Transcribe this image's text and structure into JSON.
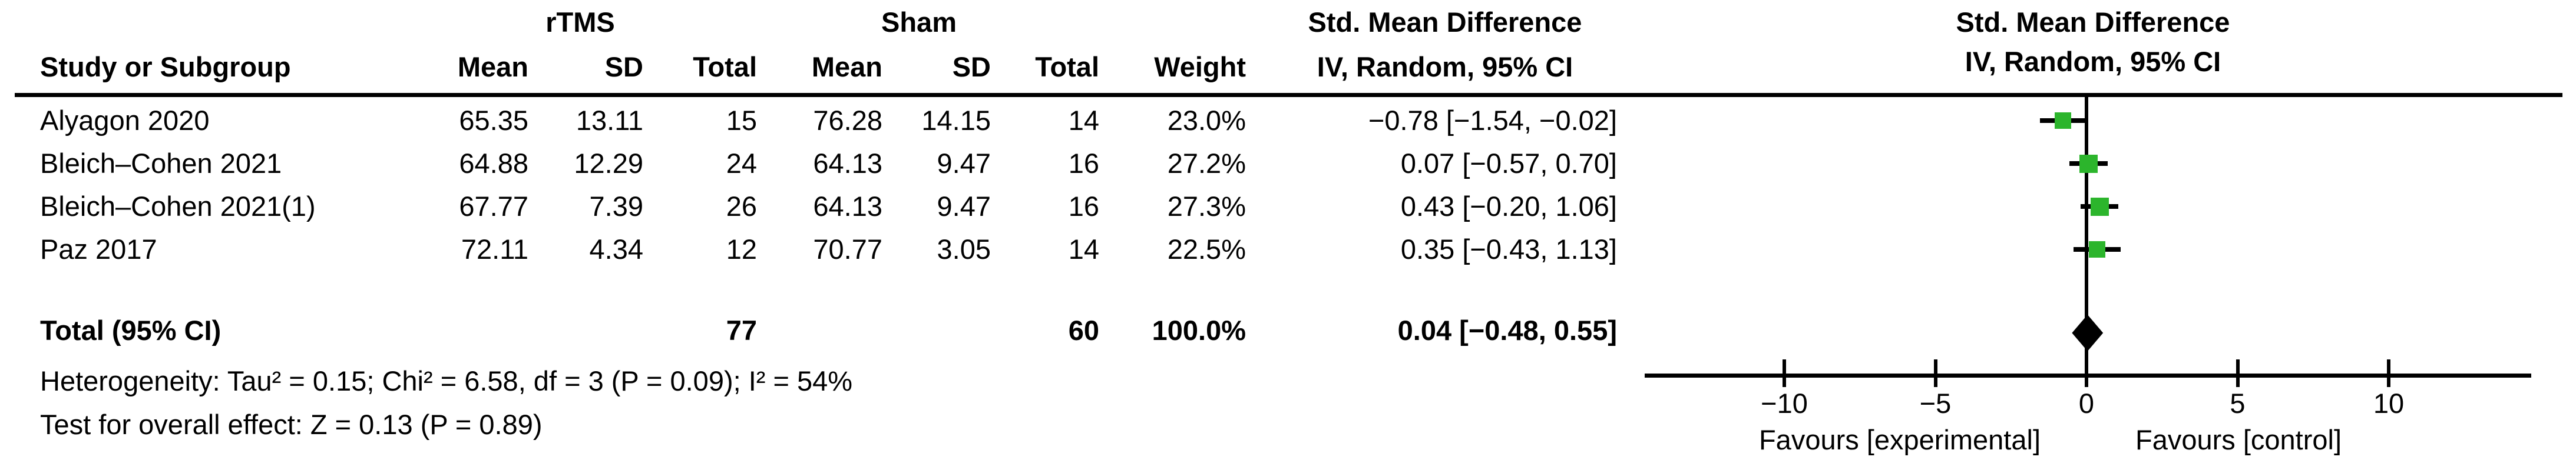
{
  "figure_title": "Forest plot: rTMS vs Sham, Std. Mean Difference (IV, Random, 95% CI)",
  "colors": {
    "square_green": "#2cb52c",
    "line_black": "#000000",
    "background": "#ffffff"
  },
  "table": {
    "group_headers": {
      "rtms": "rTMS",
      "sham": "Sham",
      "smd_table": "Std. Mean Difference",
      "smd_plot_line1": "Std. Mean Difference",
      "smd_plot_line2": "IV, Random, 95% CI"
    },
    "column_headers": {
      "study": "Study or Subgroup",
      "mean1": "Mean",
      "sd1": "SD",
      "total1": "Total",
      "mean2": "Mean",
      "sd2": "SD",
      "total2": "Total",
      "weight": "Weight",
      "ci": "IV, Random, 95% CI"
    },
    "rows": [
      {
        "study": "Alyagon 2020",
        "mean1": "65.35",
        "sd1": "13.11",
        "total1": "15",
        "mean2": "76.28",
        "sd2": "14.15",
        "total2": "14",
        "weight": "23.0%",
        "ci": "−0.78 [−1.54, −0.02]"
      },
      {
        "study": "Bleich–Cohen 2021",
        "mean1": "64.88",
        "sd1": "12.29",
        "total1": "24",
        "mean2": "64.13",
        "sd2": "9.47",
        "total2": "16",
        "weight": "27.2%",
        "ci": "0.07 [−0.57, 0.70]"
      },
      {
        "study": "Bleich–Cohen 2021(1)",
        "mean1": "67.77",
        "sd1": "7.39",
        "total1": "26",
        "mean2": "64.13",
        "sd2": "9.47",
        "total2": "16",
        "weight": "27.3%",
        "ci": "0.43 [−0.20, 1.06]"
      },
      {
        "study": "Paz 2017",
        "mean1": "72.11",
        "sd1": "4.34",
        "total1": "12",
        "mean2": "70.77",
        "sd2": "3.05",
        "total2": "14",
        "weight": "22.5%",
        "ci": "0.35 [−0.43, 1.13]"
      }
    ],
    "total_row": {
      "label": "Total (95% CI)",
      "total1": "77",
      "total2": "60",
      "weight": "100.0%",
      "ci": "0.04 [−0.48, 0.55]"
    }
  },
  "footer": {
    "heterogeneity": "Heterogeneity: Tau² = 0.15; Chi² = 6.58, df = 3 (P = 0.09); I² = 54%",
    "overall_effect": "Test for overall effect: Z = 0.13 (P = 0.89)"
  },
  "chart_data": {
    "type": "scatter",
    "subtype": "forest-plot",
    "effect_measure": "Std. Mean Difference, IV, Random, 95% CI",
    "studies": [
      {
        "name": "Alyagon 2020",
        "smd": -0.78,
        "ci": [
          -1.54,
          -0.02
        ],
        "weight_pct": 23.0
      },
      {
        "name": "Bleich–Cohen 2021",
        "smd": 0.07,
        "ci": [
          -0.57,
          0.7
        ],
        "weight_pct": 27.2
      },
      {
        "name": "Bleich–Cohen 2021(1)",
        "smd": 0.43,
        "ci": [
          -0.2,
          1.06
        ],
        "weight_pct": 27.3
      },
      {
        "name": "Paz 2017",
        "smd": 0.35,
        "ci": [
          -0.43,
          1.13
        ],
        "weight_pct": 22.5
      }
    ],
    "total": {
      "smd": 0.04,
      "ci": [
        -0.48,
        0.55
      ],
      "weight_pct": 100.0
    },
    "axis": {
      "ticks": [
        -10,
        -5,
        0,
        5,
        10
      ],
      "tick_labels": [
        "−10",
        "−5",
        "0",
        "5",
        "10"
      ],
      "range_shown": [
        -14.6,
        14.7
      ],
      "favours_left": "Favours [experimental]",
      "favours_right": "Favours [control]",
      "grid": false
    },
    "marker_color": "#2cb52c",
    "summary_marker": "black diamond"
  }
}
